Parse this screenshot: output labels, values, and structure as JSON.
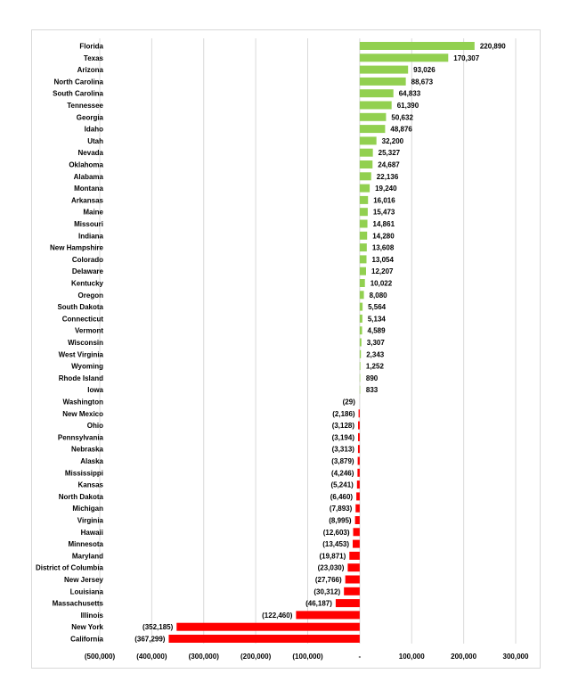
{
  "chart_data": {
    "type": "bar",
    "orientation": "horizontal",
    "title": "",
    "xlabel": "",
    "ylabel": "",
    "xlim": [
      -500000,
      300000
    ],
    "x_ticks": [
      -500000,
      -400000,
      -300000,
      -200000,
      -100000,
      0,
      100000,
      200000,
      300000
    ],
    "x_tick_labels": [
      "(500,000)",
      "(400,000)",
      "(300,000)",
      "(200,000)",
      "(100,000)",
      "-",
      "100,000",
      "200,000",
      "300,000"
    ],
    "grid": "vertical",
    "colors": {
      "positive": "#92d050",
      "negative": "#ff0000"
    },
    "categories": [
      "Florida",
      "Texas",
      "Arizona",
      "North Carolina",
      "South Carolina",
      "Tennessee",
      "Georgia",
      "Idaho",
      "Utah",
      "Nevada",
      "Oklahoma",
      "Alabama",
      "Montana",
      "Arkansas",
      "Maine",
      "Missouri",
      "Indiana",
      "New Hampshire",
      "Colorado",
      "Delaware",
      "Kentucky",
      "Oregon",
      "South Dakota",
      "Connecticut",
      "Vermont",
      "Wisconsin",
      "West Virginia",
      "Wyoming",
      "Rhode Island",
      "Iowa",
      "Washington",
      "New Mexico",
      "Ohio",
      "Pennsylvania",
      "Nebraska",
      "Alaska",
      "Mississippi",
      "Kansas",
      "North Dakota",
      "Michigan",
      "Virginia",
      "Hawaii",
      "Minnesota",
      "Maryland",
      "District of Columbia",
      "New Jersey",
      "Louisiana",
      "Massachusetts",
      "Illinois",
      "New York",
      "California"
    ],
    "values": [
      220890,
      170307,
      93026,
      88673,
      64833,
      61390,
      50632,
      48876,
      32200,
      25327,
      24687,
      22136,
      19240,
      16016,
      15473,
      14861,
      14280,
      13608,
      13054,
      12207,
      10022,
      8080,
      5564,
      5134,
      4589,
      3307,
      2343,
      1252,
      890,
      833,
      -29,
      -2186,
      -3128,
      -3194,
      -3313,
      -3879,
      -4246,
      -5241,
      -6460,
      -7893,
      -8995,
      -12603,
      -13453,
      -19871,
      -23030,
      -27766,
      -30312,
      -46187,
      -122460,
      -352185,
      -367299
    ],
    "value_labels": [
      "220,890",
      "170,307",
      "93,026",
      "88,673",
      "64,833",
      "61,390",
      "50,632",
      "48,876",
      "32,200",
      "25,327",
      "24,687",
      "22,136",
      "19,240",
      "16,016",
      "15,473",
      "14,861",
      "14,280",
      "13,608",
      "13,054",
      "12,207",
      "10,022",
      "8,080",
      "5,564",
      "5,134",
      "4,589",
      "3,307",
      "2,343",
      "1,252",
      "890",
      "833",
      "(29)",
      "(2,186)",
      "(3,128)",
      "(3,194)",
      "(3,313)",
      "(3,879)",
      "(4,246)",
      "(5,241)",
      "(6,460)",
      "(7,893)",
      "(8,995)",
      "(12,603)",
      "(13,453)",
      "(19,871)",
      "(23,030)",
      "(27,766)",
      "(30,312)",
      "(46,187)",
      "(122,460)",
      "(352,185)",
      "(367,299)"
    ]
  }
}
